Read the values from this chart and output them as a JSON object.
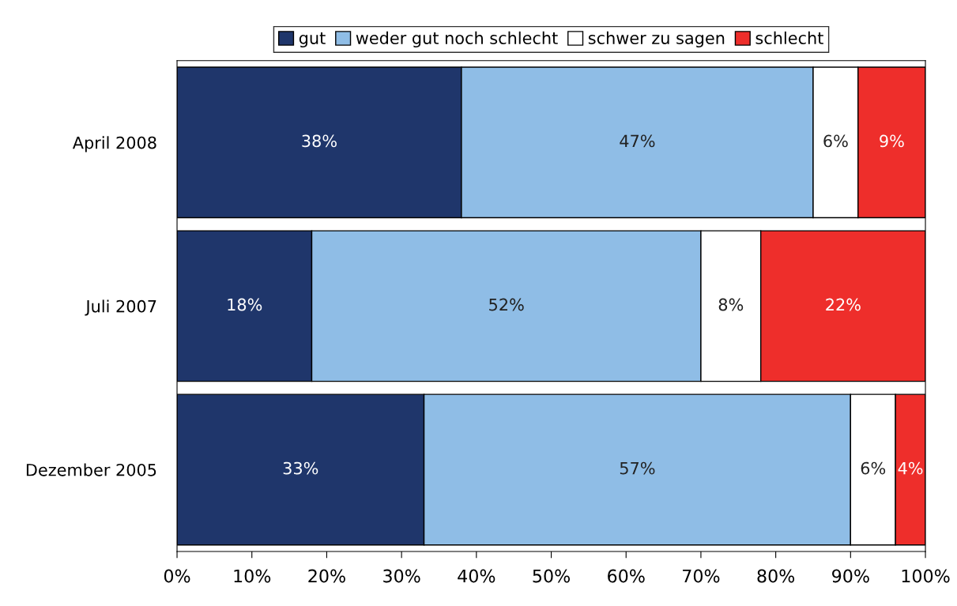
{
  "chart_data": {
    "type": "bar",
    "orientation": "horizontal",
    "stacked": true,
    "categories": [
      "April 2008",
      "Juli 2007",
      "Dezember 2005"
    ],
    "series": [
      {
        "name": "gut",
        "color": "#1f366b",
        "values": [
          38,
          18,
          33
        ],
        "value_labels": [
          "38%",
          "18%",
          "33%"
        ]
      },
      {
        "name": "weder gut noch schlecht",
        "color": "#8fbde6",
        "values": [
          47,
          52,
          57
        ],
        "value_labels": [
          "47%",
          "52%",
          "57%"
        ]
      },
      {
        "name": "schwer zu sagen",
        "color": "#ffffff",
        "values": [
          6,
          8,
          6
        ],
        "value_labels": [
          "6%",
          "8%",
          "6%"
        ]
      },
      {
        "name": "schlecht",
        "color": "#ee2e2b",
        "values": [
          9,
          22,
          4
        ],
        "value_labels": [
          "9%",
          "22%",
          "4%"
        ]
      }
    ],
    "xlim": [
      0,
      100
    ],
    "xticks": [
      {
        "value": 0,
        "label": "0%"
      },
      {
        "value": 10,
        "label": "10%"
      },
      {
        "value": 20,
        "label": "20%"
      },
      {
        "value": 30,
        "label": "30%"
      },
      {
        "value": 40,
        "label": "40%"
      },
      {
        "value": 50,
        "label": "50%"
      },
      {
        "value": 60,
        "label": "60%"
      },
      {
        "value": 70,
        "label": "70%"
      },
      {
        "value": 80,
        "label": "80%"
      },
      {
        "value": 90,
        "label": "90%"
      },
      {
        "value": 100,
        "label": "100%"
      }
    ],
    "legend": "top",
    "grid": false
  }
}
